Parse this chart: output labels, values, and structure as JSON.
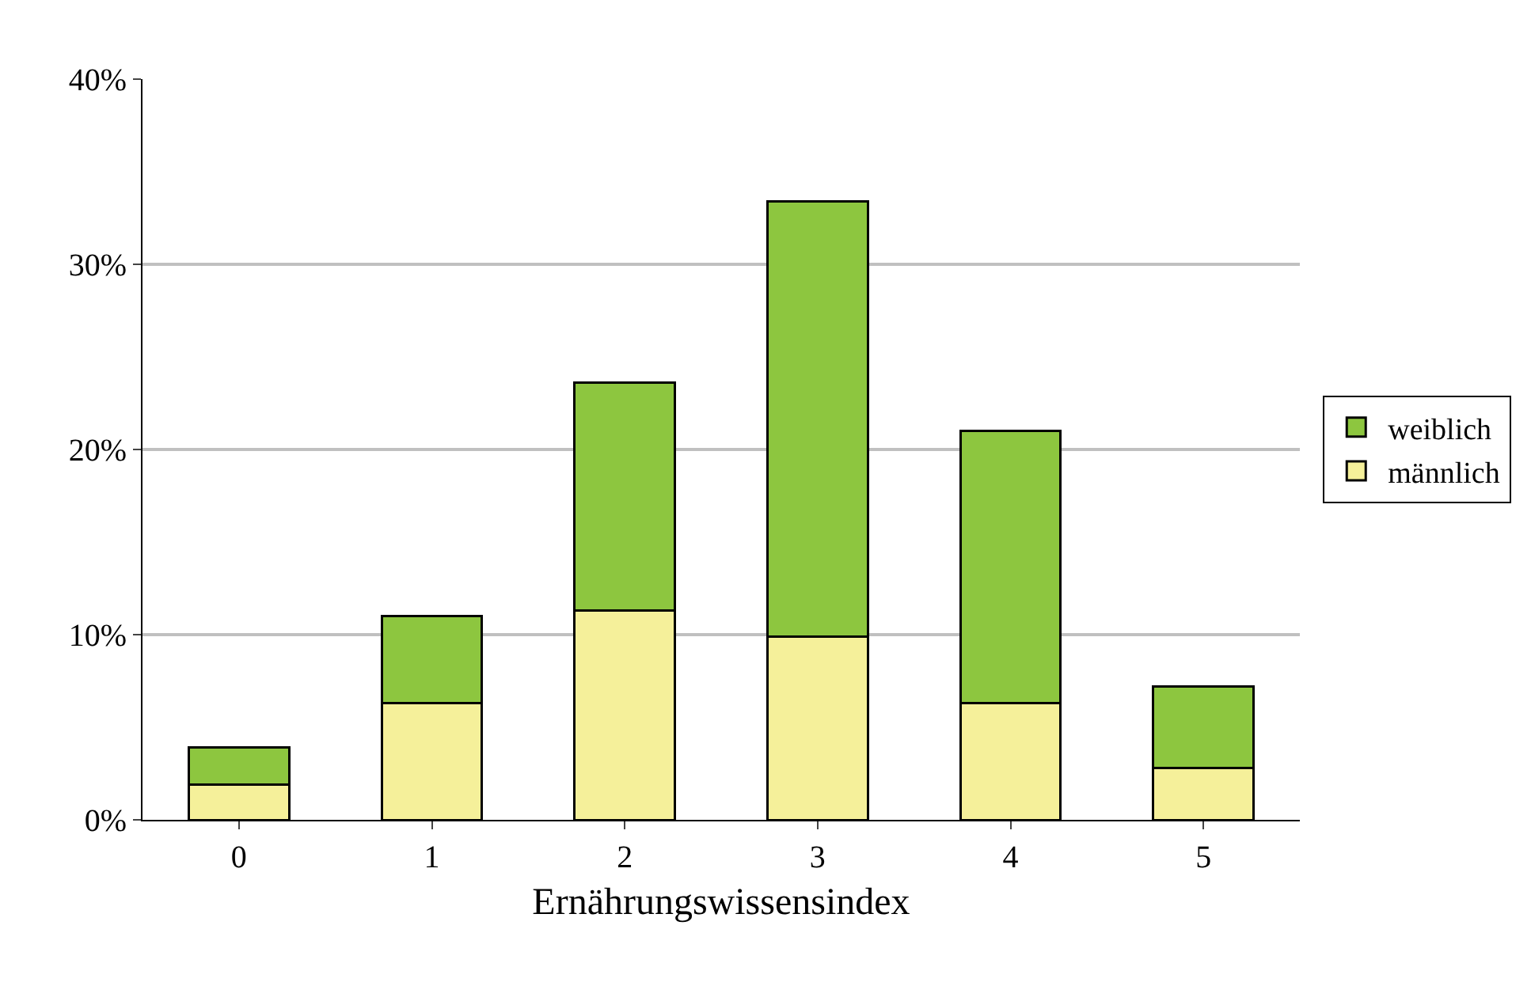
{
  "chart_data": {
    "type": "bar",
    "stacked": true,
    "xlabel": "Ernährungswissensindex",
    "categories": [
      "0",
      "1",
      "2",
      "3",
      "4",
      "5"
    ],
    "series": [
      {
        "name": "männlich",
        "color": "#f5f09a",
        "values": [
          1.9,
          6.3,
          11.3,
          9.9,
          6.3,
          2.8
        ]
      },
      {
        "name": "weiblich",
        "color": "#8dc63f",
        "values": [
          2.0,
          4.7,
          12.3,
          23.5,
          14.7,
          4.4
        ]
      }
    ],
    "ylim": [
      0,
      40
    ],
    "yticks": [
      {
        "value": 0,
        "label": "0%"
      },
      {
        "value": 10,
        "label": "10%"
      },
      {
        "value": 20,
        "label": "20%"
      },
      {
        "value": 30,
        "label": "30%"
      },
      {
        "value": 40,
        "label": "40%"
      }
    ],
    "grid": "y",
    "legend": "right"
  }
}
